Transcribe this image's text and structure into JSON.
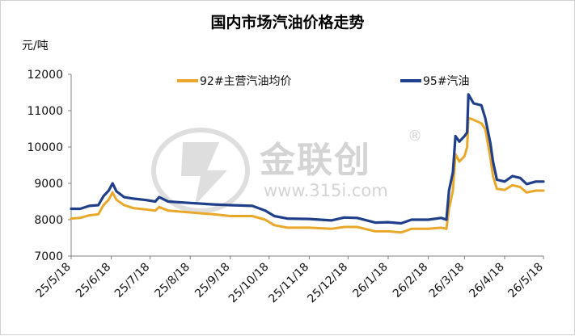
{
  "title": "国内市场汽油价格走势",
  "unit_label": "元/吨",
  "watermark": {
    "brand": "金联创",
    "url": "www.315i.com",
    "registered": "®"
  },
  "colors": {
    "series_92": "#E9A82A",
    "series_95": "#203F8A",
    "axis": "#808080"
  },
  "chart_data": {
    "type": "line",
    "title": "国内市场汽油价格走势",
    "ylabel": "元/吨",
    "xlabel": "",
    "ylim": [
      7000,
      12000
    ],
    "yticks": [
      7000,
      8000,
      9000,
      10000,
      11000,
      12000
    ],
    "xticks": [
      "25/5/18",
      "25/6/18",
      "25/7/18",
      "25/8/18",
      "25/9/18",
      "25/10/18",
      "25/11/18",
      "25/12/18",
      "26/1/18",
      "26/2/18",
      "26/3/18",
      "26/4/18",
      "26/5/18"
    ],
    "x_range": [
      "25/5/18",
      "26/5/18"
    ],
    "grid": false,
    "legend": "top",
    "series": [
      {
        "name": "92#主营汽油均价",
        "color": "#E9A82A",
        "points": [
          [
            "25/5/18",
            8030
          ],
          [
            "25/5/25",
            8050
          ],
          [
            "25/6/1",
            8120
          ],
          [
            "25/6/8",
            8150
          ],
          [
            "25/6/12",
            8400
          ],
          [
            "25/6/16",
            8550
          ],
          [
            "25/6/19",
            8750
          ],
          [
            "25/6/22",
            8550
          ],
          [
            "25/6/28",
            8400
          ],
          [
            "25/7/5",
            8320
          ],
          [
            "25/7/15",
            8280
          ],
          [
            "25/7/22",
            8250
          ],
          [
            "25/7/25",
            8350
          ],
          [
            "25/8/1",
            8250
          ],
          [
            "25/8/18",
            8200
          ],
          [
            "25/9/5",
            8150
          ],
          [
            "25/9/18",
            8100
          ],
          [
            "25/10/5",
            8100
          ],
          [
            "25/10/15",
            8000
          ],
          [
            "25/10/22",
            7850
          ],
          [
            "25/11/1",
            7780
          ],
          [
            "25/11/18",
            7780
          ],
          [
            "25/12/5",
            7750
          ],
          [
            "25/12/15",
            7800
          ],
          [
            "25/12/25",
            7800
          ],
          [
            "26/1/8",
            7680
          ],
          [
            "26/1/18",
            7680
          ],
          [
            "26/1/28",
            7650
          ],
          [
            "26/2/5",
            7750
          ],
          [
            "26/2/18",
            7750
          ],
          [
            "26/2/28",
            7780
          ],
          [
            "26/3/4",
            7750
          ],
          [
            "26/3/6",
            8300
          ],
          [
            "26/3/9",
            8800
          ],
          [
            "26/3/11",
            9800
          ],
          [
            "26/3/14",
            9600
          ],
          [
            "26/3/18",
            9750
          ],
          [
            "26/3/20",
            10000
          ],
          [
            "26/3/21",
            10800
          ],
          [
            "26/3/25",
            10750
          ],
          [
            "26/3/31",
            10650
          ],
          [
            "26/4/3",
            10500
          ],
          [
            "26/4/7",
            9700
          ],
          [
            "26/4/9",
            9200
          ],
          [
            "26/4/12",
            8850
          ],
          [
            "26/4/18",
            8820
          ],
          [
            "26/4/24",
            8950
          ],
          [
            "26/4/30",
            8900
          ],
          [
            "26/5/5",
            8750
          ],
          [
            "26/5/12",
            8800
          ],
          [
            "26/5/18",
            8800
          ]
        ]
      },
      {
        "name": "95#汽油",
        "color": "#203F8A",
        "points": [
          [
            "25/5/18",
            8300
          ],
          [
            "25/5/25",
            8300
          ],
          [
            "25/6/1",
            8380
          ],
          [
            "25/6/8",
            8400
          ],
          [
            "25/6/12",
            8650
          ],
          [
            "25/6/16",
            8800
          ],
          [
            "25/6/19",
            9000
          ],
          [
            "25/6/22",
            8780
          ],
          [
            "25/6/28",
            8620
          ],
          [
            "25/7/5",
            8580
          ],
          [
            "25/7/15",
            8540
          ],
          [
            "25/7/22",
            8500
          ],
          [
            "25/7/25",
            8620
          ],
          [
            "25/8/1",
            8500
          ],
          [
            "25/8/18",
            8460
          ],
          [
            "25/9/5",
            8420
          ],
          [
            "25/9/18",
            8400
          ],
          [
            "25/10/5",
            8380
          ],
          [
            "25/10/15",
            8250
          ],
          [
            "25/10/22",
            8100
          ],
          [
            "25/11/1",
            8030
          ],
          [
            "25/11/18",
            8020
          ],
          [
            "25/12/5",
            7980
          ],
          [
            "25/12/15",
            8060
          ],
          [
            "25/12/25",
            8050
          ],
          [
            "26/1/8",
            7920
          ],
          [
            "26/1/18",
            7930
          ],
          [
            "26/1/28",
            7900
          ],
          [
            "26/2/5",
            8000
          ],
          [
            "26/2/18",
            8000
          ],
          [
            "26/2/28",
            8050
          ],
          [
            "26/3/4",
            8000
          ],
          [
            "26/3/6",
            8800
          ],
          [
            "26/3/9",
            9300
          ],
          [
            "26/3/11",
            10300
          ],
          [
            "26/3/14",
            10150
          ],
          [
            "26/3/18",
            10300
          ],
          [
            "26/3/20",
            10400
          ],
          [
            "26/3/21",
            11450
          ],
          [
            "26/3/25",
            11200
          ],
          [
            "26/3/31",
            11150
          ],
          [
            "26/4/3",
            10800
          ],
          [
            "26/4/7",
            10100
          ],
          [
            "26/4/9",
            9600
          ],
          [
            "26/4/12",
            9100
          ],
          [
            "26/4/18",
            9050
          ],
          [
            "26/4/24",
            9200
          ],
          [
            "26/4/30",
            9150
          ],
          [
            "26/5/5",
            8980
          ],
          [
            "26/5/12",
            9050
          ],
          [
            "26/5/18",
            9050
          ]
        ]
      }
    ]
  }
}
